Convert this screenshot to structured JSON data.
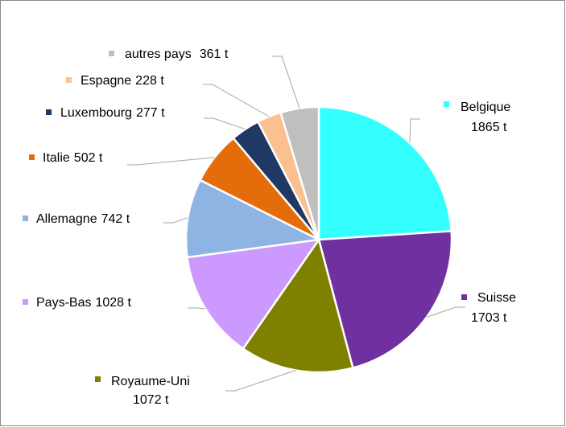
{
  "chart_data": {
    "type": "pie",
    "categories": [
      "Belgique",
      "Suisse",
      "Royaume-Uni",
      "Pays-Bas",
      "Allemagne",
      "Italie",
      "Luxembourg",
      "Espagne",
      "autres pays"
    ],
    "values": [
      1865,
      1703,
      1072,
      1028,
      742,
      502,
      277,
      228,
      361
    ],
    "value_labels": [
      "1865 t",
      "1703 t",
      "1072 t",
      "1028 t",
      "742 t",
      "502 t",
      "277 t",
      "228 t",
      "361 t"
    ],
    "colors": [
      "#33ffff",
      "#7030a0",
      "#808000",
      "#cc99ff",
      "#8eb4e3",
      "#e46c0a",
      "#1f3864",
      "#fac090",
      "#bfbfbf"
    ]
  }
}
